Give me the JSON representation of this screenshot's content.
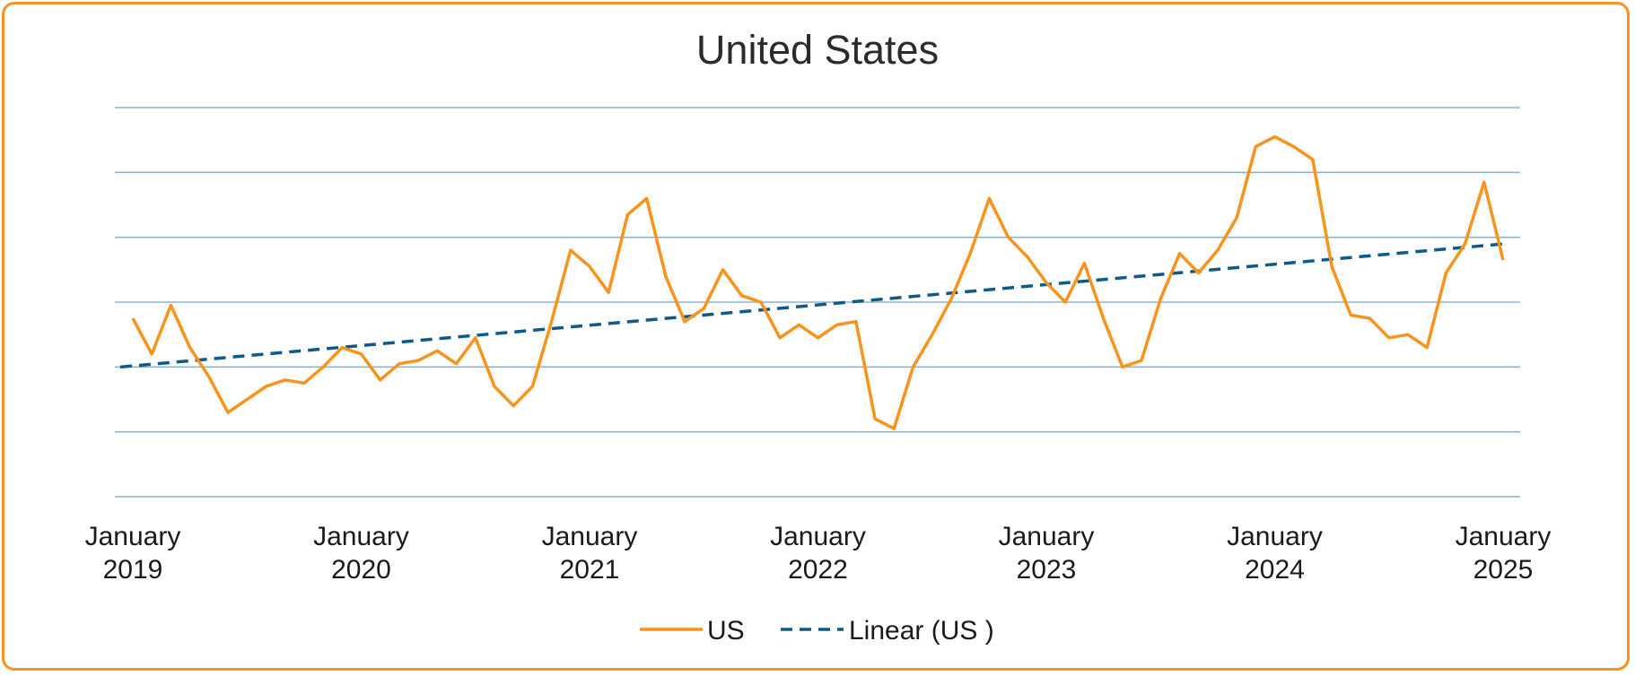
{
  "chart_data": {
    "type": "line",
    "title": "United States",
    "xlabel": "",
    "ylabel": "",
    "grid": true,
    "legend_position": "bottom",
    "x_start": "2019-01",
    "x_step": "month",
    "xlim": [
      "2019-01",
      "2025-01"
    ],
    "ylim": [
      0,
      6
    ],
    "y_gridlines": 7,
    "y_tick_labels_shown": false,
    "x_ticks": [
      {
        "line1": "January",
        "line2": "2019",
        "date": "2019-01"
      },
      {
        "line1": "January",
        "line2": "2020",
        "date": "2020-01"
      },
      {
        "line1": "January",
        "line2": "2021",
        "date": "2021-01"
      },
      {
        "line1": "January",
        "line2": "2022",
        "date": "2022-01"
      },
      {
        "line1": "January",
        "line2": "2023",
        "date": "2023-01"
      },
      {
        "line1": "January",
        "line2": "2024",
        "date": "2024-01"
      },
      {
        "line1": "January",
        "line2": "2025",
        "date": "2025-01"
      }
    ],
    "series": [
      {
        "name": "US",
        "color": "#f7941d",
        "style": "solid",
        "values": [
          2.75,
          2.2,
          2.95,
          2.3,
          1.85,
          1.3,
          1.5,
          1.7,
          1.8,
          1.75,
          2.0,
          2.3,
          2.2,
          1.8,
          2.05,
          2.1,
          2.25,
          2.05,
          2.45,
          1.7,
          1.4,
          1.7,
          2.7,
          3.8,
          3.55,
          3.15,
          4.35,
          4.6,
          3.4,
          2.7,
          2.9,
          3.5,
          3.1,
          3.0,
          2.45,
          2.65,
          2.45,
          2.65,
          2.7,
          1.2,
          1.05,
          2.0,
          2.5,
          3.05,
          3.75,
          4.6,
          4.0,
          3.7,
          3.3,
          3.0,
          3.6,
          2.75,
          2.0,
          2.1,
          3.05,
          3.75,
          3.45,
          3.8,
          4.3,
          5.4,
          5.55,
          5.4,
          5.2,
          3.55,
          2.8,
          2.75,
          2.45,
          2.5,
          2.3,
          3.45,
          3.9,
          4.85,
          3.65
        ]
      },
      {
        "name": "Linear (US )",
        "color": "#0e5a8a",
        "style": "dashed",
        "type": "trendline",
        "start_value": 2.0,
        "end_value": 3.9
      }
    ]
  }
}
